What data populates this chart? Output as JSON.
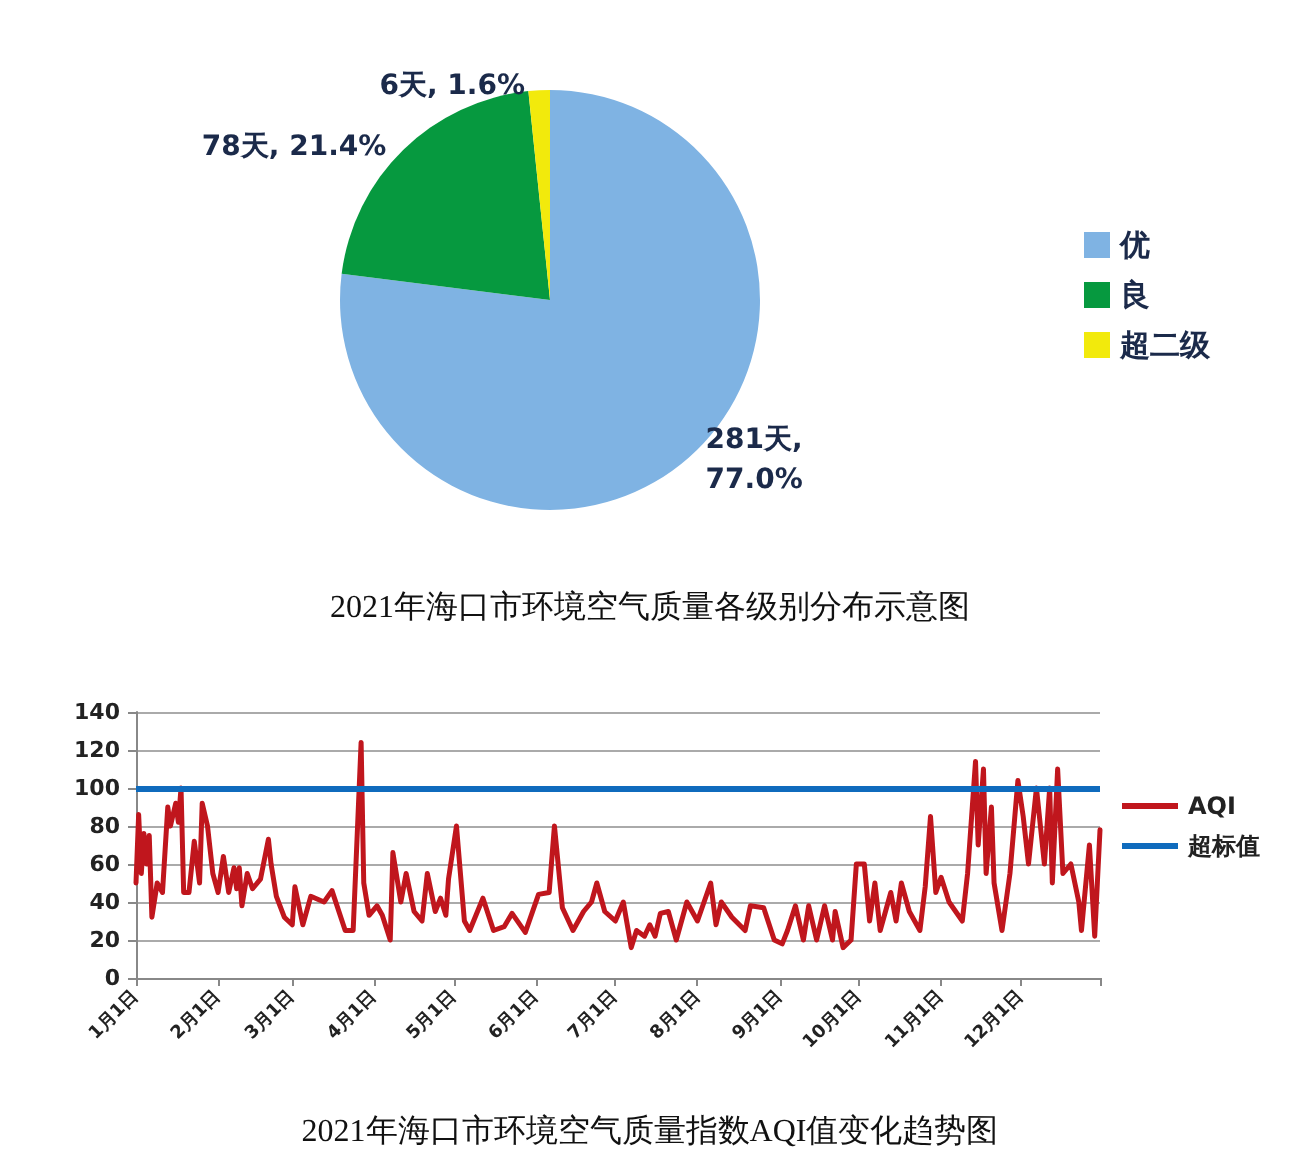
{
  "chart_data": [
    {
      "type": "pie",
      "title": "2021年海口市环境空气质量各级别分布示意图",
      "categories": [
        "优",
        "良",
        "超二级"
      ],
      "values": [
        281,
        78,
        6
      ],
      "value_labels": [
        "281天, 77.0%",
        "78天, 21.4%",
        "6天, 1.6%"
      ],
      "colors": [
        "#7fb3e3",
        "#06993f",
        "#f2ea0c"
      ],
      "legend": "right"
    },
    {
      "type": "line",
      "title": "2021年海口市环境空气质量指数AQI值变化趋势图",
      "xlim": [
        "2021-01-01",
        "2021-12-31"
      ],
      "xticks": [
        {
          "value": "2021-01-01",
          "label": "1月1日"
        },
        {
          "value": "2021-02-01",
          "label": "2月1日"
        },
        {
          "value": "2021-03-01",
          "label": "3月1日"
        },
        {
          "value": "2021-04-01",
          "label": "4月1日"
        },
        {
          "value": "2021-05-01",
          "label": "5月1日"
        },
        {
          "value": "2021-06-01",
          "label": "6月1日"
        },
        {
          "value": "2021-07-01",
          "label": "7月1日"
        },
        {
          "value": "2021-08-01",
          "label": "8月1日"
        },
        {
          "value": "2021-09-01",
          "label": "9月1日"
        },
        {
          "value": "2021-10-01",
          "label": "10月1日"
        },
        {
          "value": "2021-11-01",
          "label": "11月1日"
        },
        {
          "value": "2021-12-01",
          "label": "12月1日"
        },
        {
          "value": "2021-12-31",
          "label": null
        }
      ],
      "ylim": [
        0,
        140
      ],
      "yticks": [
        0,
        20,
        40,
        60,
        80,
        100,
        120,
        140
      ],
      "grid": "y",
      "legend": "right",
      "marker": "none",
      "line_style": "solid",
      "ref_lines": [
        {
          "axis": "y",
          "value": 100,
          "label": "超标值",
          "color": "#0f6bbd"
        }
      ],
      "series": [
        {
          "name": "AQI",
          "color": "#c0161d",
          "x": [
            "2021-01-01",
            "2021-01-02",
            "2021-01-03",
            "2021-01-04",
            "2021-01-05",
            "2021-01-06",
            "2021-01-07",
            "2021-01-09",
            "2021-01-11",
            "2021-01-13",
            "2021-01-14",
            "2021-01-16",
            "2021-01-17",
            "2021-01-18",
            "2021-01-19",
            "2021-01-21",
            "2021-01-23",
            "2021-01-25",
            "2021-01-26",
            "2021-01-28",
            "2021-01-30",
            "2021-02-01",
            "2021-02-03",
            "2021-02-05",
            "2021-02-07",
            "2021-02-08",
            "2021-02-09",
            "2021-02-10",
            "2021-02-12",
            "2021-02-14",
            "2021-02-17",
            "2021-02-20",
            "2021-02-21",
            "2021-02-23",
            "2021-02-26",
            "2021-03-01",
            "2021-03-02",
            "2021-03-05",
            "2021-03-08",
            "2021-03-13",
            "2021-03-16",
            "2021-03-21",
            "2021-03-24",
            "2021-03-27",
            "2021-03-28",
            "2021-03-30",
            "2021-04-02",
            "2021-04-04",
            "2021-04-07",
            "2021-04-08",
            "2021-04-11",
            "2021-04-13",
            "2021-04-16",
            "2021-04-19",
            "2021-04-21",
            "2021-04-24",
            "2021-04-26",
            "2021-04-28",
            "2021-04-29",
            "2021-05-02",
            "2021-05-05",
            "2021-05-07",
            "2021-05-12",
            "2021-05-16",
            "2021-05-20",
            "2021-05-23",
            "2021-05-28",
            "2021-06-02",
            "2021-06-06",
            "2021-06-08",
            "2021-06-11",
            "2021-06-15",
            "2021-06-19",
            "2021-06-22",
            "2021-06-24",
            "2021-06-27",
            "2021-07-01",
            "2021-07-04",
            "2021-07-07",
            "2021-07-09",
            "2021-07-12",
            "2021-07-14",
            "2021-07-16",
            "2021-07-18",
            "2021-07-21",
            "2021-07-24",
            "2021-07-28",
            "2021-08-01",
            "2021-08-06",
            "2021-08-08",
            "2021-08-10",
            "2021-08-14",
            "2021-08-19",
            "2021-08-21",
            "2021-08-26",
            "2021-08-30",
            "2021-09-02",
            "2021-09-04",
            "2021-09-07",
            "2021-09-10",
            "2021-09-12",
            "2021-09-15",
            "2021-09-18",
            "2021-09-21",
            "2021-09-22",
            "2021-09-25",
            "2021-09-28",
            "2021-09-30",
            "2021-10-03",
            "2021-10-05",
            "2021-10-07",
            "2021-10-09",
            "2021-10-13",
            "2021-10-15",
            "2021-10-17",
            "2021-10-20",
            "2021-10-24",
            "2021-10-26",
            "2021-10-28",
            "2021-10-30",
            "2021-11-01",
            "2021-11-04",
            "2021-11-09",
            "2021-11-11",
            "2021-11-14",
            "2021-11-15",
            "2021-11-17",
            "2021-11-18",
            "2021-11-20",
            "2021-11-21",
            "2021-11-24",
            "2021-11-27",
            "2021-11-30",
            "2021-12-02",
            "2021-12-04",
            "2021-12-07",
            "2021-12-10",
            "2021-12-12",
            "2021-12-13",
            "2021-12-15",
            "2021-12-17",
            "2021-12-20",
            "2021-12-23",
            "2021-12-24",
            "2021-12-27",
            "2021-12-29",
            "2021-12-30",
            "2021-12-31"
          ],
          "values": [
            50,
            86,
            55,
            76,
            60,
            75,
            32,
            50,
            45,
            90,
            80,
            92,
            82,
            100,
            45,
            45,
            72,
            50,
            92,
            80,
            55,
            45,
            64,
            45,
            58,
            47,
            58,
            38,
            55,
            47,
            52,
            73,
            60,
            43,
            32,
            28,
            48,
            28,
            43,
            40,
            46,
            25,
            25,
            124,
            50,
            33,
            38,
            33,
            20,
            66,
            40,
            55,
            35,
            30,
            55,
            35,
            42,
            33,
            52,
            80,
            30,
            25,
            42,
            25,
            27,
            34,
            24,
            44,
            45,
            80,
            37,
            25,
            35,
            40,
            50,
            35,
            30,
            40,
            16,
            25,
            22,
            28,
            22,
            34,
            35,
            20,
            40,
            30,
            50,
            28,
            40,
            32,
            25,
            38,
            37,
            20,
            18,
            25,
            38,
            20,
            38,
            20,
            38,
            20,
            35,
            16,
            20,
            60,
            60,
            30,
            50,
            25,
            45,
            30,
            50,
            35,
            25,
            48,
            85,
            45,
            53,
            40,
            30,
            55,
            114,
            70,
            110,
            55,
            90,
            50,
            25,
            55,
            104,
            85,
            60,
            100,
            60,
            100,
            50,
            110,
            55,
            60,
            40,
            25,
            70,
            22,
            50,
            78
          ]
        }
      ]
    }
  ]
}
